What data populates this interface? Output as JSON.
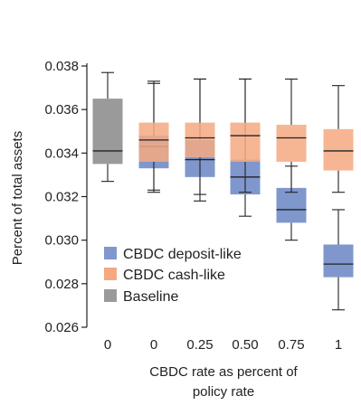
{
  "chart_data": {
    "type": "boxplot",
    "categories": [
      "0",
      "0",
      "0.25",
      "0.50",
      "0.75",
      "1"
    ],
    "xlabel": "CBDC rate as percent of policy rate",
    "ylabel": "Percent of total assets",
    "ylim": [
      0.026,
      0.038
    ],
    "yticks": [
      "0.026",
      "0.028",
      "0.030",
      "0.032",
      "0.034",
      "0.036",
      "0.038"
    ],
    "legend_position": "bottom-left",
    "legend": [
      {
        "name": "CBDC deposit-like",
        "color": "#7f97cc"
      },
      {
        "name": "CBDC cash-like",
        "color": "#f5a981"
      },
      {
        "name": "Baseline",
        "color": "#9a9a9a"
      }
    ],
    "series": [
      {
        "name": "Baseline",
        "color": "#9a9a9a",
        "boxes": [
          {
            "cat": 0,
            "whisker_low": 0.0327,
            "q1": 0.0335,
            "median": 0.0341,
            "q3": 0.0365,
            "whisker_high": 0.0377
          }
        ]
      },
      {
        "name": "CBDC deposit-like",
        "color": "#7f97cc",
        "boxes": [
          {
            "cat": 1,
            "whisker_low": 0.0322,
            "q1": 0.0333,
            "median": 0.0343,
            "q3": 0.0348,
            "whisker_high": 0.0372
          },
          {
            "cat": 2,
            "whisker_low": 0.0318,
            "q1": 0.0329,
            "median": 0.0337,
            "q3": 0.0346,
            "whisker_high": 0.0374
          },
          {
            "cat": 3,
            "whisker_low": 0.0311,
            "q1": 0.0321,
            "median": 0.0329,
            "q3": 0.0337,
            "whisker_high": 0.0374
          },
          {
            "cat": 4,
            "whisker_low": 0.03,
            "q1": 0.0308,
            "median": 0.0314,
            "q3": 0.0324,
            "whisker_high": 0.0334
          },
          {
            "cat": 5,
            "whisker_low": 0.0268,
            "q1": 0.0283,
            "median": 0.0289,
            "q3": 0.0298,
            "whisker_high": 0.0314
          }
        ]
      },
      {
        "name": "CBDC cash-like",
        "color": "#f5a981",
        "boxes": [
          {
            "cat": 1,
            "whisker_low": 0.0323,
            "q1": 0.0336,
            "median": 0.0346,
            "q3": 0.0354,
            "whisker_high": 0.0373
          },
          {
            "cat": 2,
            "whisker_low": 0.0321,
            "q1": 0.0338,
            "median": 0.0347,
            "q3": 0.0354,
            "whisker_high": 0.0374
          },
          {
            "cat": 3,
            "whisker_low": 0.0322,
            "q1": 0.0336,
            "median": 0.0348,
            "q3": 0.0354,
            "whisker_high": 0.0374
          },
          {
            "cat": 4,
            "whisker_low": 0.0322,
            "q1": 0.0336,
            "median": 0.0347,
            "q3": 0.0353,
            "whisker_high": 0.0374
          },
          {
            "cat": 5,
            "whisker_low": 0.0322,
            "q1": 0.0332,
            "median": 0.0341,
            "q3": 0.0351,
            "whisker_high": 0.0371
          }
        ]
      }
    ]
  }
}
